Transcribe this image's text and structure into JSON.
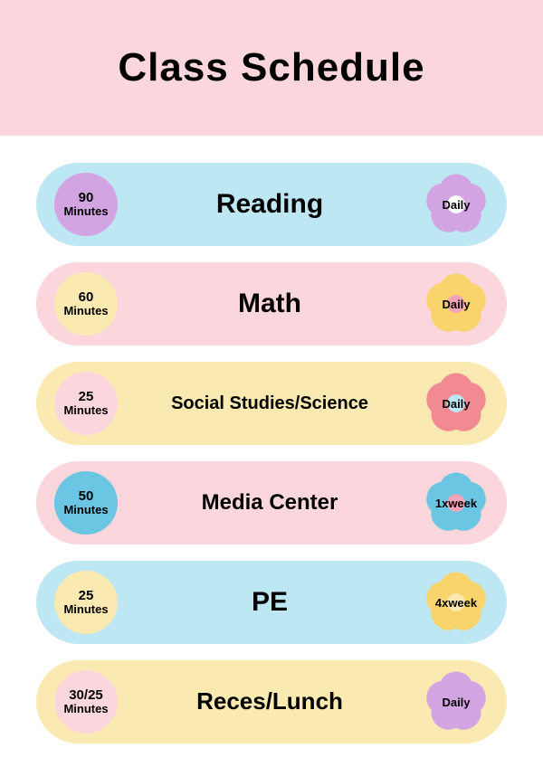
{
  "title": "Class Schedule",
  "header_bg": "#fcd6dd",
  "title_fontsize": 44,
  "rows": [
    {
      "duration": "90",
      "unit": "Minutes",
      "subject": "Reading",
      "subject_fontsize": 30,
      "frequency": "Daily",
      "row_bg": "#bde7f3",
      "circle_bg": "#d3a4e2",
      "flower_fill": "#d3a4e2",
      "flower_center": "#ffffff"
    },
    {
      "duration": "60",
      "unit": "Minutes",
      "subject": "Math",
      "subject_fontsize": 30,
      "frequency": "Daily",
      "row_bg": "#fcd6dd",
      "circle_bg": "#faeab1",
      "flower_fill": "#f9d36b",
      "flower_center": "#f4a4b8"
    },
    {
      "duration": "25",
      "unit": "Minutes",
      "subject": "Social Studies/Science",
      "subject_fontsize": 20,
      "frequency": "Daily",
      "row_bg": "#faeab1",
      "circle_bg": "#fcd6dd",
      "flower_fill": "#f28a94",
      "flower_center": "#bde7f3"
    },
    {
      "duration": "50",
      "unit": "Minutes",
      "subject": "Media Center",
      "subject_fontsize": 24,
      "frequency": "1xweek",
      "row_bg": "#fcd6dd",
      "circle_bg": "#6ac6e3",
      "flower_fill": "#6ac6e3",
      "flower_center": "#f4a4b8"
    },
    {
      "duration": "25",
      "unit": "Minutes",
      "subject": "PE",
      "subject_fontsize": 30,
      "frequency": "4xweek",
      "row_bg": "#bde7f3",
      "circle_bg": "#faeab1",
      "flower_fill": "#f9d36b",
      "flower_center": "#faeab1"
    },
    {
      "duration": "30/25",
      "unit": "Minutes",
      "subject": "Reces/Lunch",
      "subject_fontsize": 26,
      "frequency": "Daily",
      "row_bg": "#faeab1",
      "circle_bg": "#fcd6dd",
      "flower_fill": "#d3a4e2",
      "flower_center": "#d3a4e2"
    }
  ]
}
